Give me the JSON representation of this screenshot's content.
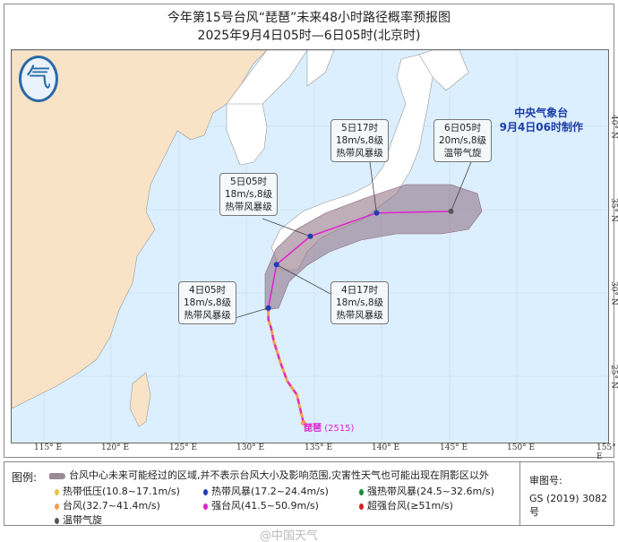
{
  "header": {
    "title": "今年第15号台风“琵琶”未来48小时路径概率预报图",
    "subtitle": "2025年9月4日05时—6日05时(北京时)"
  },
  "issuer": {
    "name": "中央气象台",
    "issued": "9月4日06时制作",
    "logo_icon": "cma-logo-icon"
  },
  "map": {
    "ocean_color": "#dcefff",
    "china_land_color": "#f8e3c6",
    "foreign_land_color": "#ffffff",
    "lon_ticks": [
      "115° E",
      "120° E",
      "125° E",
      "130° E",
      "135° E",
      "140° E",
      "145° E",
      "150° E",
      "155° E"
    ],
    "lat_ticks": [
      "40° N",
      "35° N",
      "30° N",
      "25° N"
    ],
    "typhoon_label": "琵琶",
    "typhoon_id": "(2515)",
    "past_track": [
      [
        134.2,
        22.2
      ],
      [
        133.7,
        23.9
      ],
      [
        133.0,
        24.7
      ],
      [
        132.5,
        25.8
      ],
      [
        132.0,
        27.1
      ],
      [
        131.8,
        27.9
      ],
      [
        131.6,
        28.4
      ],
      [
        131.6,
        29.1
      ]
    ],
    "forecast": [
      {
        "time": "4日05时",
        "wind": "18m/s,8级",
        "level": "热带风暴级",
        "lon": 131.6,
        "lat": 29.1,
        "color": "#1f3bb3"
      },
      {
        "time": "4日17时",
        "wind": "18m/s,8级",
        "level": "热带风暴级",
        "lon": 132.2,
        "lat": 31.7,
        "color": "#1f3bb3"
      },
      {
        "time": "5日05时",
        "wind": "18m/s,8级",
        "level": "热带风暴级",
        "lon": 134.7,
        "lat": 33.4,
        "color": "#1f3bb3"
      },
      {
        "time": "5日17时",
        "wind": "18m/s,8级",
        "level": "热带风暴级",
        "lon": 139.6,
        "lat": 34.8,
        "color": "#1f3bb3"
      },
      {
        "time": "6日05时",
        "wind": "20m/s,8级",
        "level": "温带气旋",
        "lon": 145.1,
        "lat": 34.9,
        "color": "#555555"
      }
    ],
    "track_color": "#e020d0",
    "cone_color": "#8a6a7c"
  },
  "legend": {
    "label": "图例:",
    "cone_desc": "台风中心未来可能经过的区域,并不表示台风大小及影响范围,灾害性天气也可能出现在阴影区以外",
    "items": [
      {
        "text": "热带低压(10.8~17.1m/s)",
        "color": "#e8c830"
      },
      {
        "text": "热带风暴(17.2~24.4m/s)",
        "color": "#1f3bb3"
      },
      {
        "text": "强热带风暴(24.5~32.6m/s)",
        "color": "#1d8a3a"
      },
      {
        "text": "台风(32.7~41.4m/s)",
        "color": "#f0a050"
      },
      {
        "text": "强台风(41.5~50.9m/s)",
        "color": "#e020d0"
      },
      {
        "text": "超强台风(≥51m/s)",
        "color": "#d82020"
      },
      {
        "text": "温带气旋",
        "color": "#555555"
      }
    ],
    "review_label": "审图号:",
    "review_no": "GS (2019) 3082号"
  },
  "watermark": "@中国天气"
}
